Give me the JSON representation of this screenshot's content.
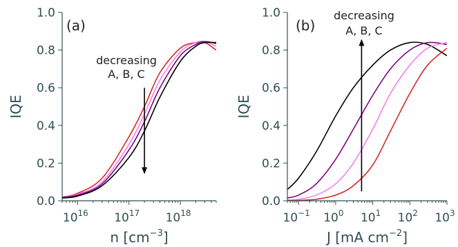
{
  "chart_data": [
    {
      "type": "line",
      "panel_label": "(a)",
      "xlabel": "n [cm",
      "xlabel_sup": "−3",
      "xlabel_end": "]",
      "ylabel": "IQE",
      "x_scale": "log",
      "xlim": [
        5000000000000000.0,
        5e+18
      ],
      "ylim": [
        0.0,
        1.0
      ],
      "grid": false,
      "yticks": [
        0.0,
        0.2,
        0.4,
        0.6,
        0.8,
        1.0
      ],
      "ytick_labels": [
        "0.0",
        "0.2",
        "0.4",
        "0.6",
        "0.8",
        "1.0"
      ],
      "xticks": [
        1e+16,
        1e+17,
        1e+18
      ],
      "xtick_labels": [
        {
          "base": "10",
          "exp": "16"
        },
        {
          "base": "10",
          "exp": "17"
        },
        {
          "base": "10",
          "exp": "18"
        }
      ],
      "annotation": {
        "lines": [
          "decreasing",
          "A, B, C"
        ],
        "arrow_x": 2e+17,
        "arrow_from_y": 0.6,
        "arrow_to_y": 0.16
      },
      "series": [
        {
          "color": "#d62728",
          "points": [
            [
              5000000000000000.0,
              0.02
            ],
            [
              1e+16,
              0.04
            ],
            [
              3e+16,
              0.12
            ],
            [
              1e+17,
              0.34
            ],
            [
              2e+17,
              0.5
            ],
            [
              4e+17,
              0.68
            ],
            [
              1e+18,
              0.81
            ],
            [
              2e+18,
              0.84
            ],
            [
              3e+18,
              0.84
            ],
            [
              5e+18,
              0.8
            ]
          ]
        },
        {
          "color": "#ee82ee",
          "points": [
            [
              5000000000000000.0,
              0.02
            ],
            [
              1e+16,
              0.035
            ],
            [
              3e+16,
              0.1
            ],
            [
              1e+17,
              0.3
            ],
            [
              2e+17,
              0.46
            ],
            [
              4e+17,
              0.64
            ],
            [
              1e+18,
              0.79
            ],
            [
              2e+18,
              0.84
            ],
            [
              3e+18,
              0.845
            ],
            [
              5e+18,
              0.82
            ]
          ]
        },
        {
          "color": "#800080",
          "points": [
            [
              5000000000000000.0,
              0.018
            ],
            [
              1e+16,
              0.03
            ],
            [
              3e+16,
              0.09
            ],
            [
              1e+17,
              0.27
            ],
            [
              2e+17,
              0.42
            ],
            [
              4e+17,
              0.6
            ],
            [
              1e+18,
              0.77
            ],
            [
              2e+18,
              0.83
            ],
            [
              3e+18,
              0.845
            ],
            [
              5e+18,
              0.835
            ]
          ]
        },
        {
          "color": "#000000",
          "points": [
            [
              5000000000000000.0,
              0.015
            ],
            [
              1e+16,
              0.025
            ],
            [
              3e+16,
              0.08
            ],
            [
              1e+17,
              0.23
            ],
            [
              2e+17,
              0.37
            ],
            [
              4e+17,
              0.55
            ],
            [
              1e+18,
              0.74
            ],
            [
              2e+18,
              0.82
            ],
            [
              3e+18,
              0.84
            ],
            [
              5e+18,
              0.84
            ]
          ]
        }
      ]
    },
    {
      "type": "line",
      "panel_label": "(b)",
      "xlabel": "J [mA cm",
      "xlabel_sup": "−2",
      "xlabel_end": "]",
      "ylabel": "IQE",
      "x_scale": "log",
      "xlim": [
        0.05,
        1000
      ],
      "ylim": [
        0.0,
        1.0
      ],
      "grid": false,
      "yticks": [
        0.0,
        0.2,
        0.4,
        0.6,
        0.8,
        1.0
      ],
      "ytick_labels": [
        "0.0",
        "0.2",
        "0.4",
        "0.6",
        "0.8",
        "1.0"
      ],
      "xticks": [
        0.1,
        1,
        10,
        100,
        1000
      ],
      "xtick_labels": [
        {
          "base": "10",
          "exp": "−1"
        },
        {
          "base": "10",
          "exp": "0"
        },
        {
          "base": "10",
          "exp": "1"
        },
        {
          "base": "10",
          "exp": "2"
        },
        {
          "base": "10",
          "exp": "3"
        }
      ],
      "annotation": {
        "lines": [
          "decreasing",
          "A, B, C"
        ],
        "arrow_x": 5,
        "arrow_from_y": 0.05,
        "arrow_to_y": 0.84
      },
      "series": [
        {
          "color": "#000000",
          "points": [
            [
              0.05,
              0.06
            ],
            [
              0.1,
              0.12
            ],
            [
              0.3,
              0.26
            ],
            [
              1,
              0.45
            ],
            [
              3,
              0.6
            ],
            [
              10,
              0.72
            ],
            [
              30,
              0.8
            ],
            [
              100,
              0.84
            ],
            [
              300,
              0.83
            ],
            [
              1000,
              0.77
            ]
          ]
        },
        {
          "color": "#800080",
          "points": [
            [
              0.05,
              0.015
            ],
            [
              0.1,
              0.03
            ],
            [
              0.3,
              0.09
            ],
            [
              1,
              0.22
            ],
            [
              3,
              0.38
            ],
            [
              10,
              0.56
            ],
            [
              30,
              0.7
            ],
            [
              100,
              0.8
            ],
            [
              300,
              0.84
            ],
            [
              1000,
              0.83
            ]
          ]
        },
        {
          "color": "#ee82ee",
          "points": [
            [
              0.05,
              0.004
            ],
            [
              0.1,
              0.008
            ],
            [
              0.3,
              0.03
            ],
            [
              1,
              0.09
            ],
            [
              3,
              0.2
            ],
            [
              10,
              0.38
            ],
            [
              30,
              0.57
            ],
            [
              100,
              0.72
            ],
            [
              300,
              0.81
            ],
            [
              1000,
              0.84
            ]
          ]
        },
        {
          "color": "#d62728",
          "points": [
            [
              0.05,
              0.001
            ],
            [
              0.1,
              0.002
            ],
            [
              0.3,
              0.008
            ],
            [
              1,
              0.03
            ],
            [
              3,
              0.08
            ],
            [
              10,
              0.19
            ],
            [
              30,
              0.37
            ],
            [
              100,
              0.57
            ],
            [
              300,
              0.72
            ],
            [
              1000,
              0.81
            ]
          ]
        }
      ]
    }
  ]
}
